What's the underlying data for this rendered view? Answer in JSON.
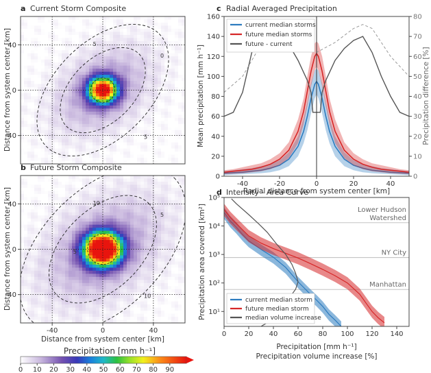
{
  "chart_data": [
    {
      "type": "heatmap",
      "panel": "a",
      "title": "Current Storm Composite",
      "ylabel": "Distance from system center [km]",
      "xlim": [
        -65,
        65
      ],
      "ylim": [
        -65,
        65
      ],
      "yticks": [
        -40,
        0,
        40
      ],
      "peak_mm_h": 95,
      "core_sigma_km": 8,
      "halo_sigma_km": [
        30,
        20
      ],
      "contour_labels": [
        "0",
        "5",
        "5"
      ],
      "grid": "dotted at 0 and ±40"
    },
    {
      "type": "heatmap",
      "panel": "b",
      "title": "Future Storm Composite",
      "xlabel": "Distance from system center [km]",
      "ylabel": "Distance from system center [km]",
      "xlim": [
        -65,
        65
      ],
      "ylim": [
        -65,
        65
      ],
      "xticks": [
        -40,
        0,
        40
      ],
      "yticks": [
        -40,
        0,
        40
      ],
      "peak_mm_h": 125,
      "core_sigma_km": 10,
      "halo_sigma_km": [
        38,
        25
      ],
      "contour_labels": [
        "5",
        "10",
        "10",
        "5"
      ],
      "colorbar": {
        "label": "Precipitation [mm h⁻¹]",
        "ticks": [
          0,
          10,
          20,
          30,
          40,
          50,
          60,
          70,
          80,
          90
        ]
      }
    },
    {
      "type": "line",
      "panel": "c",
      "title": "Radial Averaged Precipitation",
      "xlabel": "Radial distance from system center [km]",
      "ylabel": "Mean precipitation [mm h⁻¹]",
      "y2label": "Precipitation difference [%]",
      "xlim": [
        -50,
        50
      ],
      "ylim": [
        0,
        160
      ],
      "y2lim": [
        0,
        80
      ],
      "xticks": [
        -40,
        -20,
        0,
        20,
        40
      ],
      "yticks": [
        0,
        20,
        40,
        60,
        80,
        100,
        120,
        140,
        160
      ],
      "y2ticks": [
        0,
        10,
        20,
        30,
        40,
        50,
        60,
        70,
        80
      ],
      "x": [
        -50,
        -45,
        -40,
        -35,
        -30,
        -25,
        -20,
        -15,
        -10,
        -7,
        -5,
        -3,
        -1,
        0,
        1,
        3,
        5,
        7,
        10,
        15,
        20,
        25,
        30,
        35,
        40,
        45,
        50
      ],
      "series": [
        {
          "name": "current median storms",
          "color": "#2c7bbf",
          "values": [
            3,
            3.5,
            4,
            5,
            6,
            8,
            11,
            17,
            30,
            45,
            60,
            78,
            92,
            95,
            92,
            78,
            60,
            45,
            30,
            17,
            11,
            8,
            6,
            5,
            4,
            3.5,
            3
          ],
          "lower": [
            1,
            1.5,
            2,
            2.5,
            3,
            4,
            6,
            10,
            20,
            33,
            46,
            63,
            78,
            82,
            78,
            63,
            46,
            33,
            20,
            10,
            6,
            4,
            3,
            2.5,
            2,
            1.5,
            1
          ],
          "upper": [
            5,
            6,
            7,
            8,
            10,
            12,
            16,
            24,
            40,
            58,
            74,
            93,
            106,
            108,
            106,
            93,
            74,
            58,
            40,
            24,
            16,
            12,
            10,
            8,
            7,
            6,
            5
          ]
        },
        {
          "name": "future median storms",
          "color": "#d62728",
          "values": [
            4,
            5,
            6,
            7,
            9,
            12,
            17,
            26,
            45,
            65,
            85,
            105,
            120,
            123,
            120,
            105,
            85,
            65,
            45,
            26,
            17,
            12,
            9,
            7,
            6,
            5,
            4
          ],
          "lower": [
            2,
            2.5,
            3,
            4,
            5,
            7,
            11,
            18,
            33,
            52,
            70,
            90,
            106,
            110,
            106,
            90,
            70,
            52,
            33,
            18,
            11,
            7,
            5,
            4,
            3,
            2.5,
            2
          ],
          "upper": [
            6,
            7,
            9,
            11,
            13,
            17,
            23,
            34,
            57,
            78,
            100,
            120,
            133,
            135,
            133,
            120,
            100,
            78,
            57,
            34,
            23,
            17,
            13,
            11,
            9,
            7,
            6
          ]
        },
        {
          "name": "future - current",
          "color": "#555555",
          "axis": "right",
          "x": [
            -50,
            -45,
            -40,
            -35,
            -30,
            -25,
            -20,
            -15,
            -10,
            -5,
            -3,
            -2,
            2,
            3,
            5,
            10,
            15,
            20,
            25,
            30,
            35,
            40,
            45,
            50
          ],
          "values": [
            30,
            32,
            42,
            62,
            68,
            64,
            67,
            66,
            58,
            48,
            42,
            32,
            32,
            42,
            48,
            58,
            64,
            68,
            70,
            62,
            50,
            40,
            32,
            30
          ]
        },
        {
          "name": "",
          "color": "#999999",
          "axis": "right",
          "style": "dashed",
          "x": [
            -50,
            -40,
            -30,
            -20,
            -10,
            0,
            10,
            20,
            25,
            30,
            40,
            50
          ],
          "values": [
            42,
            50,
            66,
            74,
            67,
            62,
            67,
            74,
            76,
            74,
            60,
            50
          ]
        }
      ],
      "vline_x": 0,
      "legend": "top-left"
    },
    {
      "type": "line",
      "panel": "d",
      "title": "Intensity - Area Curve",
      "xlabel": "Precipitation [mm h⁻¹]",
      "xlabel2": "Precipitation volume increase [%]",
      "ylabel": "Precipitation area covered [km²]",
      "yscale": "log",
      "xlim": [
        0,
        150
      ],
      "ylim": [
        3,
        100000
      ],
      "xticks": [
        0,
        20,
        40,
        60,
        80,
        100,
        120,
        140
      ],
      "ytick_labels": [
        "10¹",
        "10²",
        "10³",
        "10⁴",
        "10⁵"
      ],
      "ytick_values": [
        10,
        100,
        1000,
        10000,
        100000
      ],
      "series": [
        {
          "name": "current median storm",
          "color": "#2c7bbf",
          "x": [
            0,
            5,
            10,
            15,
            20,
            30,
            40,
            50,
            60,
            70,
            75,
            80,
            85,
            90,
            95
          ],
          "values": [
            30000,
            15000,
            9000,
            5000,
            3000,
            1500,
            800,
            350,
            110,
            40,
            25,
            15,
            8,
            5,
            3
          ],
          "lower_factor": 0.6,
          "upper_factor": 1.5
        },
        {
          "name": "future median storm",
          "color": "#d62728",
          "x": [
            0,
            5,
            10,
            20,
            30,
            40,
            50,
            60,
            70,
            80,
            90,
            100,
            110,
            115,
            120,
            125,
            130
          ],
          "values": [
            38000,
            20000,
            12000,
            4500,
            2500,
            1600,
            1100,
            750,
            480,
            300,
            180,
            100,
            40,
            20,
            10,
            6,
            4
          ],
          "lower_factor": 0.6,
          "upper_factor": 1.6
        },
        {
          "name": "median volume increase",
          "color": "#555555",
          "x": [
            6,
            10,
            20,
            28,
            35,
            42,
            50,
            55,
            58,
            60,
            58,
            54,
            50,
            45,
            40,
            35,
            30
          ],
          "values": [
            90000,
            60000,
            25000,
            12000,
            6000,
            2500,
            1000,
            450,
            220,
            110,
            60,
            35,
            20,
            12,
            6,
            4,
            3
          ]
        }
      ],
      "hlines": [
        {
          "label": "Lower Hudson Watershed",
          "label_lines": [
            "Lower Hudson",
            "Watershed"
          ],
          "y": 13000
        },
        {
          "label": "NY City",
          "y": 780
        },
        {
          "label": "Manhattan",
          "y": 59
        }
      ],
      "legend": "bottom-left"
    }
  ]
}
